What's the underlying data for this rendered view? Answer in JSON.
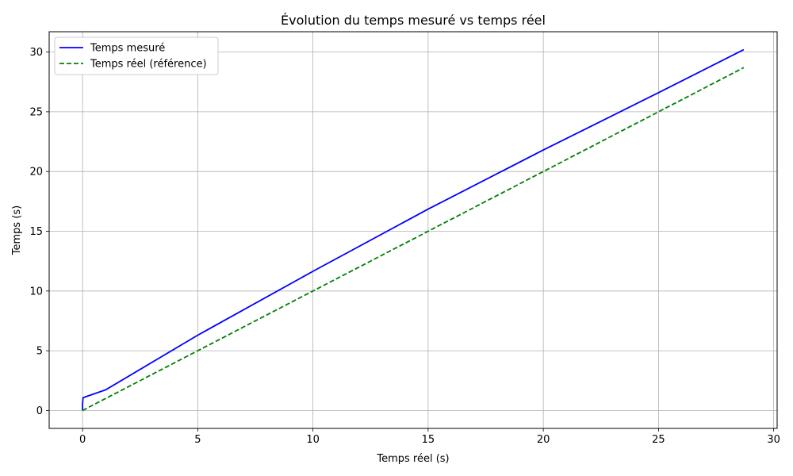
{
  "chart_data": {
    "type": "line",
    "title": "Évolution du temps mesuré vs temps réel",
    "xlabel": "Temps réel (s)",
    "ylabel": "Temps (s)",
    "xlim": [
      -1.45,
      30.15
    ],
    "ylim": [
      -1.5,
      31.7
    ],
    "xticks": [
      0,
      5,
      10,
      15,
      20,
      25,
      30
    ],
    "yticks": [
      0,
      5,
      10,
      15,
      20,
      25,
      30
    ],
    "grid": true,
    "legend_position": "top-left",
    "series": [
      {
        "name": "Temps mesuré",
        "color": "#0000ff",
        "style": "solid",
        "points": [
          [
            0,
            0
          ],
          [
            0,
            0.55
          ],
          [
            0.02,
            1.05
          ],
          [
            0.1,
            1.12
          ],
          [
            1,
            1.73
          ],
          [
            5,
            6.3
          ],
          [
            10,
            11.65
          ],
          [
            15,
            16.85
          ],
          [
            20,
            21.8
          ],
          [
            25,
            26.6
          ],
          [
            28.7,
            30.2
          ]
        ]
      },
      {
        "name": "Temps réel (référence)",
        "color": "#008000",
        "style": "dashed",
        "points": [
          [
            0,
            0
          ],
          [
            28.7,
            28.7
          ]
        ]
      }
    ]
  }
}
